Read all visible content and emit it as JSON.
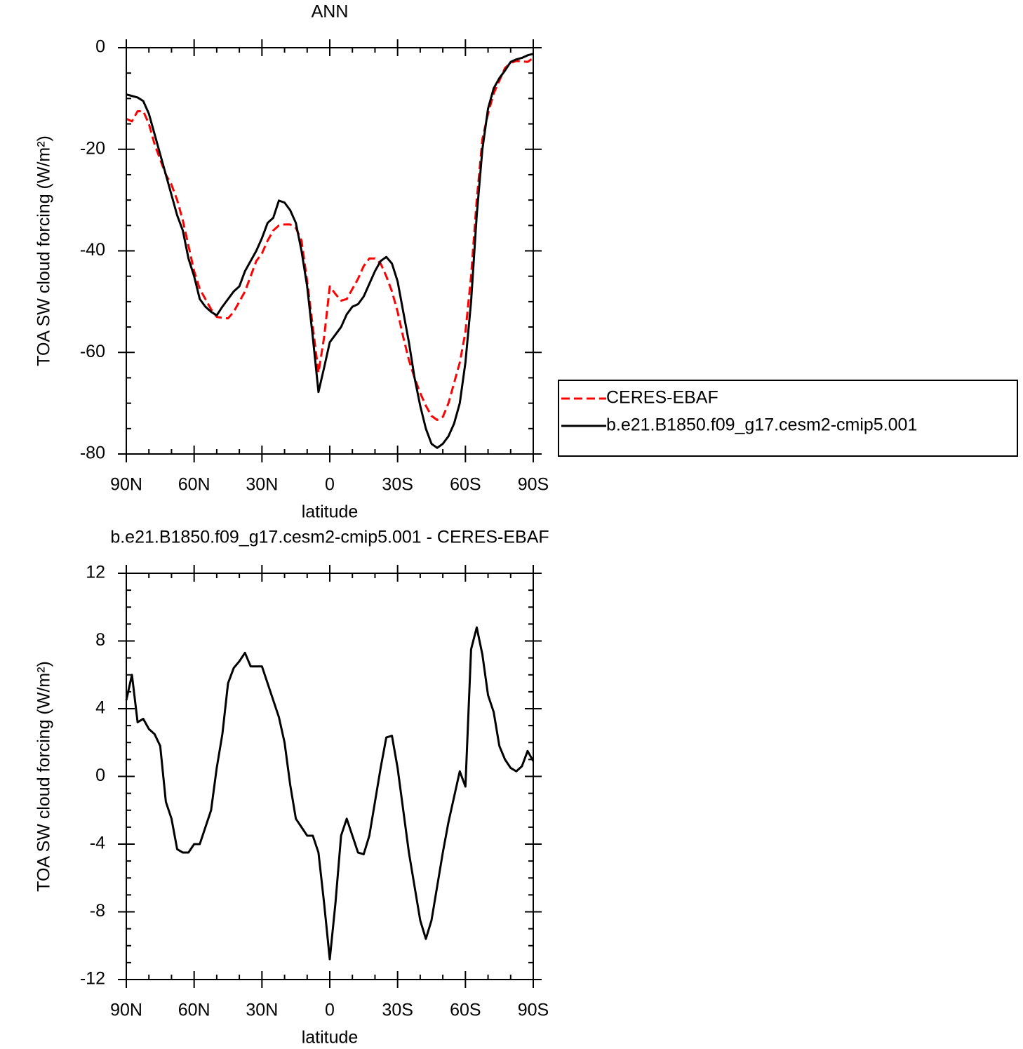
{
  "chart_data": [
    {
      "type": "line",
      "title": "ANN",
      "xlabel": "latitude",
      "ylabel": "TOA SW cloud forcing (W/m²)",
      "x": [
        90,
        87.5,
        85,
        82.5,
        80,
        77.5,
        75,
        72.5,
        70,
        67.5,
        65,
        62.5,
        60,
        57.5,
        55,
        52.5,
        50,
        47.5,
        45,
        42.5,
        40,
        37.5,
        35,
        32.5,
        30,
        27.5,
        25,
        22.5,
        20,
        17.5,
        15,
        12.5,
        10,
        7.5,
        5,
        2.5,
        0,
        -2.5,
        -5,
        -7.5,
        -10,
        -12.5,
        -15,
        -17.5,
        -20,
        -22.5,
        -25,
        -27.5,
        -30,
        -32.5,
        -35,
        -37.5,
        -40,
        -42.5,
        -45,
        -47.5,
        -50,
        -52.5,
        -55,
        -57.5,
        -60,
        -62.5,
        -65,
        -67.5,
        -70,
        -72.5,
        -75,
        -77.5,
        -80,
        -82.5,
        -85,
        -87.5,
        -90
      ],
      "series": [
        {
          "name": "CERES-EBAF",
          "color": "#ff0000",
          "dashed": true,
          "values": [
            -14,
            -14.5,
            -12.5,
            -12.5,
            -15,
            -19,
            -22,
            -25,
            -27,
            -30,
            -34,
            -39,
            -44,
            -47.5,
            -49.5,
            -51.5,
            -53,
            -53.2,
            -53.3,
            -52,
            -50,
            -48,
            -45,
            -42,
            -40.5,
            -38,
            -36,
            -35,
            -34.8,
            -34.8,
            -35.5,
            -38,
            -46,
            -55,
            -64,
            -57,
            -47,
            -48.5,
            -49.8,
            -49.5,
            -47.5,
            -45.5,
            -43,
            -41.5,
            -41.5,
            -42.5,
            -45,
            -48,
            -52,
            -57,
            -61.5,
            -65,
            -68,
            -70.5,
            -72.5,
            -73.3,
            -72.7,
            -70,
            -66,
            -62,
            -56,
            -45,
            -30,
            -18,
            -13,
            -9,
            -6.5,
            -4,
            -3,
            -2.6,
            -2.7,
            -2.8,
            -2
          ]
        },
        {
          "name": "b.e21.B1850.f09_g17.cesm2-cmip5.001",
          "color": "#000000",
          "dashed": false,
          "values": [
            -9.2,
            -9.5,
            -9.8,
            -10.5,
            -13,
            -17,
            -21,
            -25,
            -29,
            -33,
            -36,
            -41.5,
            -45,
            -49.5,
            -51,
            -52,
            -52.7,
            -51,
            -49.5,
            -48,
            -47,
            -44,
            -42,
            -40,
            -37.5,
            -34.5,
            -33.5,
            -30.1,
            -30.5,
            -32,
            -34.5,
            -40,
            -47,
            -57,
            -67.8,
            -63,
            -58,
            -56.5,
            -55,
            -52.5,
            -51,
            -50.5,
            -49,
            -46.5,
            -44,
            -42,
            -41.2,
            -42.5,
            -46,
            -52,
            -58,
            -65,
            -70.5,
            -75,
            -78,
            -78.8,
            -78,
            -76.5,
            -74,
            -70,
            -62,
            -50,
            -33,
            -20,
            -12,
            -8,
            -6,
            -4.5,
            -2.8,
            -2.3,
            -2,
            -1.5,
            -1.2
          ]
        }
      ],
      "xlim": [
        90,
        -90
      ],
      "xticks": [
        {
          "value": 90,
          "label": "90N"
        },
        {
          "value": 60,
          "label": "60N"
        },
        {
          "value": 30,
          "label": "30N"
        },
        0,
        {
          "value": -30,
          "label": "30S"
        },
        {
          "value": -60,
          "label": "60S"
        },
        {
          "value": -90,
          "label": "90S"
        }
      ],
      "xminorticks": [
        80,
        70,
        50,
        40,
        20,
        10,
        -10,
        -20,
        -40,
        -50,
        -70,
        -80
      ],
      "ylim": [
        -80,
        0
      ],
      "yticks": [
        -80,
        -60,
        -40,
        -20,
        0
      ],
      "yminorticks": [
        -75,
        -70,
        -65,
        -55,
        -50,
        -45,
        -35,
        -30,
        -25,
        -15,
        -10,
        -5
      ],
      "legend": "right"
    },
    {
      "type": "line",
      "title": "b.e21.B1850.f09_g17.cesm2-cmip5.001 - CERES-EBAF",
      "xlabel": "latitude",
      "ylabel": "TOA SW cloud forcing (W/m²)",
      "x": [
        90,
        87.5,
        85,
        82.5,
        80,
        77.5,
        75,
        72.5,
        70,
        67.5,
        65,
        62.5,
        60,
        57.5,
        55,
        52.5,
        50,
        47.5,
        45,
        42.5,
        40,
        37.5,
        35,
        32.5,
        30,
        27.5,
        25,
        22.5,
        20,
        17.5,
        15,
        12.5,
        10,
        7.5,
        5,
        2.5,
        0,
        -2.5,
        -5,
        -7.5,
        -10,
        -12.5,
        -15,
        -17.5,
        -20,
        -22.5,
        -25,
        -27.5,
        -30,
        -32.5,
        -35,
        -37.5,
        -40,
        -42.5,
        -45,
        -47.5,
        -50,
        -52.5,
        -55,
        -57.5,
        -60,
        -62.5,
        -65,
        -67.5,
        -70,
        -72.5,
        -75,
        -77.5,
        -80,
        -82.5,
        -85,
        -87.5,
        -90
      ],
      "values": [
        4.5,
        6,
        3.2,
        3.4,
        2.8,
        2.5,
        1.8,
        -1.5,
        -2.5,
        -4.3,
        -4.5,
        -4.5,
        -4,
        -4,
        -3,
        -2,
        0.5,
        2.5,
        5.5,
        6.4,
        6.8,
        7.3,
        6.5,
        6.5,
        6.5,
        5.5,
        4.5,
        3.5,
        2,
        -0.5,
        -2.5,
        -3,
        -3.5,
        -3.5,
        -4.5,
        -7.5,
        -10.8,
        -7.5,
        -3.5,
        -2.5,
        -3.5,
        -4.5,
        -4.6,
        -3.5,
        -1.5,
        0.5,
        2.3,
        2.4,
        0.5,
        -2,
        -4.5,
        -6.5,
        -8.5,
        -9.6,
        -8.5,
        -6.5,
        -4.5,
        -2.7,
        -1.2,
        0.3,
        -0.6,
        7.5,
        8.8,
        7.2,
        4.8,
        3.8,
        1.8,
        1,
        0.5,
        0.3,
        0.6,
        1.5,
        0.9
      ],
      "color": "#000000",
      "xlim": [
        90,
        -90
      ],
      "xticks": [
        {
          "value": 90,
          "label": "90N"
        },
        {
          "value": 60,
          "label": "60N"
        },
        {
          "value": 30,
          "label": "30N"
        },
        0,
        {
          "value": -30,
          "label": "30S"
        },
        {
          "value": -60,
          "label": "60S"
        },
        {
          "value": -90,
          "label": "90S"
        }
      ],
      "xminorticks": [
        80,
        70,
        50,
        40,
        20,
        10,
        -10,
        -20,
        -40,
        -50,
        -70,
        -80
      ],
      "ylim": [
        -12,
        12
      ],
      "yticks": [
        -12,
        -8,
        -4,
        0,
        4,
        8,
        12
      ],
      "yminorticks": [
        -11,
        -10,
        -9,
        -7,
        -6,
        -5,
        -3,
        -2,
        -1,
        1,
        2,
        3,
        5,
        6,
        7,
        9,
        10,
        11
      ]
    }
  ]
}
